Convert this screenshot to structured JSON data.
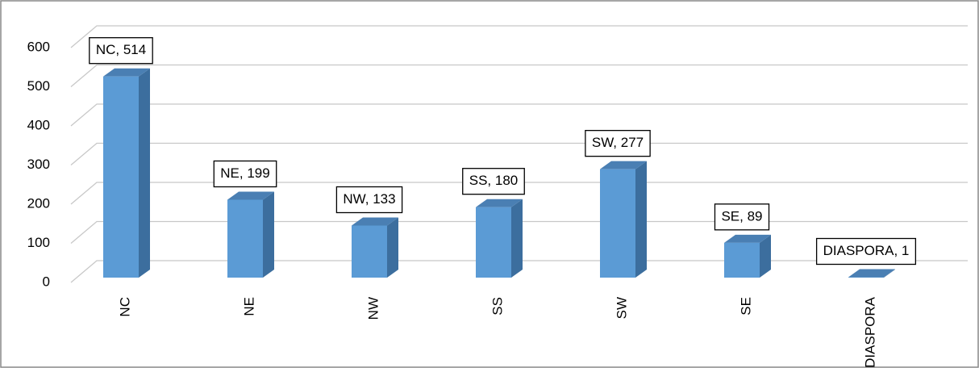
{
  "chart_data": {
    "type": "bar3d",
    "categories": [
      "NC",
      "NE",
      "NW",
      "SS",
      "SW",
      "SE",
      "DIASPORA"
    ],
    "values": [
      514,
      199,
      133,
      180,
      277,
      89,
      1
    ],
    "value_labels": [
      "NC, 514",
      "NE, 199",
      "NW, 133",
      "SS, 180",
      "SW, 277",
      "SE, 89",
      "DIASPORA, 1"
    ],
    "color": "#5b9bd5",
    "ylim": [
      0,
      600
    ],
    "yticks": [
      0,
      100,
      200,
      300,
      400,
      500,
      600
    ],
    "grid": true
  }
}
